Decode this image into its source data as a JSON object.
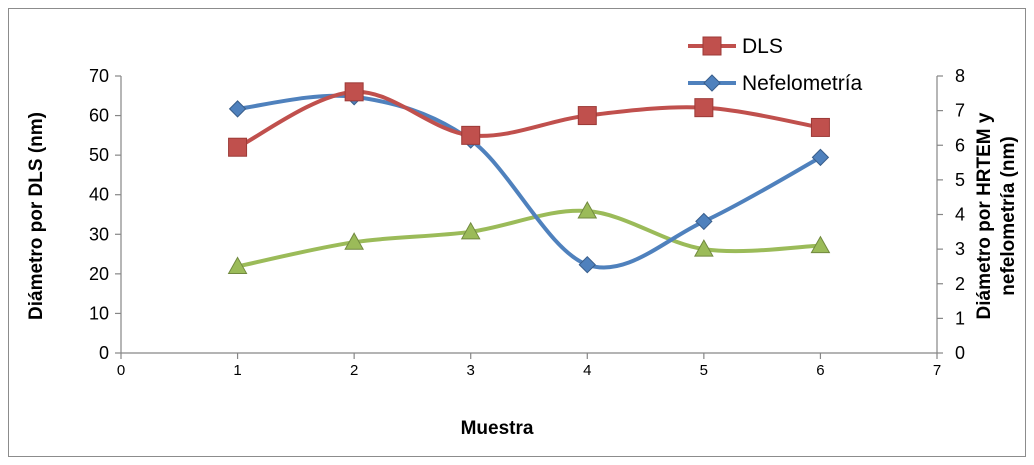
{
  "chart_data": {
    "type": "line",
    "x_axis": {
      "label": "Muestra",
      "min": 0,
      "max": 7,
      "ticks": [
        0,
        1,
        2,
        3,
        4,
        5,
        6,
        7
      ]
    },
    "y_axis_left": {
      "label": "Diámetro por DLS (nm)",
      "min": 0,
      "max": 70,
      "ticks": [
        0,
        10,
        20,
        30,
        40,
        50,
        60,
        70
      ]
    },
    "y_axis_right": {
      "label_lines": [
        "Diámetro por HRTEM y",
        "nefelometría (nm)"
      ],
      "min": 0,
      "max": 8,
      "ticks": [
        0,
        1,
        2,
        3,
        4,
        5,
        6,
        7,
        8
      ]
    },
    "grid": false,
    "legend_position": "top-right",
    "series": [
      {
        "name": "DLS",
        "axis": "left",
        "marker": "square",
        "color": "#c0504d",
        "x": [
          1,
          2,
          3,
          4,
          5,
          6
        ],
        "y": [
          52,
          66,
          55,
          60,
          62,
          57
        ]
      },
      {
        "name": "Nefelometría",
        "axis": "right",
        "marker": "diamond",
        "color": "#4f81bd",
        "x": [
          1,
          2,
          3,
          4,
          5,
          6
        ],
        "y": [
          7.05,
          7.4,
          6.15,
          2.55,
          3.8,
          5.65
        ]
      },
      {
        "axis": "right",
        "marker": "triangle",
        "color": "#9bbb59",
        "x": [
          1,
          2,
          3,
          4,
          5,
          6
        ],
        "y": [
          2.5,
          3.2,
          3.5,
          4.1,
          3.0,
          3.1
        ]
      }
    ]
  }
}
